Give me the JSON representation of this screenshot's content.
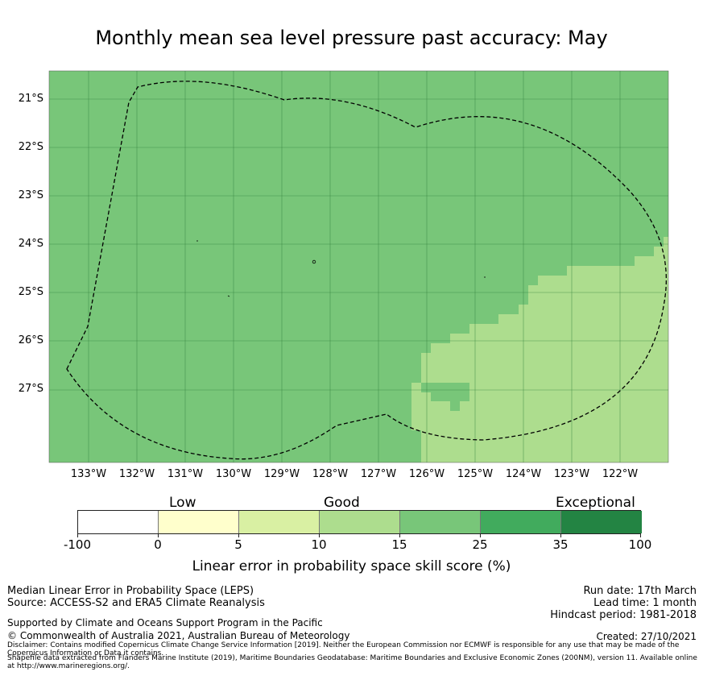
{
  "title": "Monthly mean sea level pressure past accuracy: May",
  "map": {
    "lat_labels": [
      "21°S",
      "22°S",
      "23°S",
      "24°S",
      "25°S",
      "26°S",
      "27°S"
    ],
    "lon_labels": [
      "133°W",
      "132°W",
      "131°W",
      "130°W",
      "129°W",
      "128°W",
      "127°W",
      "126°W",
      "125°W",
      "124°W",
      "123°W",
      "122°W"
    ],
    "colors": {
      "good_15_25": "#78c679",
      "good_10_15": "#addd8e",
      "grid": "#2f7d3a",
      "boundary": "#000000"
    },
    "features": [
      "ocean-grid",
      "eez-boundary-dashed",
      "islands"
    ]
  },
  "colorbar": {
    "categories": [
      "Low",
      "Good",
      "Exceptional"
    ],
    "ticks": [
      "-100",
      "0",
      "5",
      "10",
      "15",
      "25",
      "35",
      "100"
    ],
    "segments": [
      {
        "from": "-100",
        "to": "0",
        "color": "#ffffff"
      },
      {
        "from": "0",
        "to": "5",
        "color": "#ffffcc"
      },
      {
        "from": "5",
        "to": "10",
        "color": "#d9f0a3"
      },
      {
        "from": "10",
        "to": "15",
        "color": "#addd8e"
      },
      {
        "from": "15",
        "to": "25",
        "color": "#78c679"
      },
      {
        "from": "25",
        "to": "35",
        "color": "#41ab5d"
      },
      {
        "from": "35",
        "to": "100",
        "color": "#238443"
      }
    ],
    "label": "Linear error in probability space skill score (%)"
  },
  "footer": {
    "method": "Median Linear Error in Probability Space (LEPS)",
    "source": "Source: ACCESS-S2 and ERA5 Climate Reanalysis",
    "run_date": "Run date: 17th March",
    "lead_time": "Lead time: 1 month",
    "hindcast": "Hindcast period: 1981-2018",
    "supported": "Supported by Climate and Oceans Support Program in the Pacific",
    "copyright": "© Commonwealth of Australia 2021, Australian Bureau of Meteorology",
    "created": "Created: 27/10/2021",
    "disclaimer": "Disclaimer: Contains modified Copernicus Climate Change Service Information [2019]. Neither the European Commission nor ECMWF is responsible for any use that may be made of the Copernicus Information or Data it contains.",
    "shapefile": "Shapefile data extracted from Flanders Marine Institute (2019), Maritime Boundaries Geodatabase: Maritime Boundaries and Exclusive Economic Zones (200NM), version 11. Available online at http://www.marineregions.org/."
  }
}
